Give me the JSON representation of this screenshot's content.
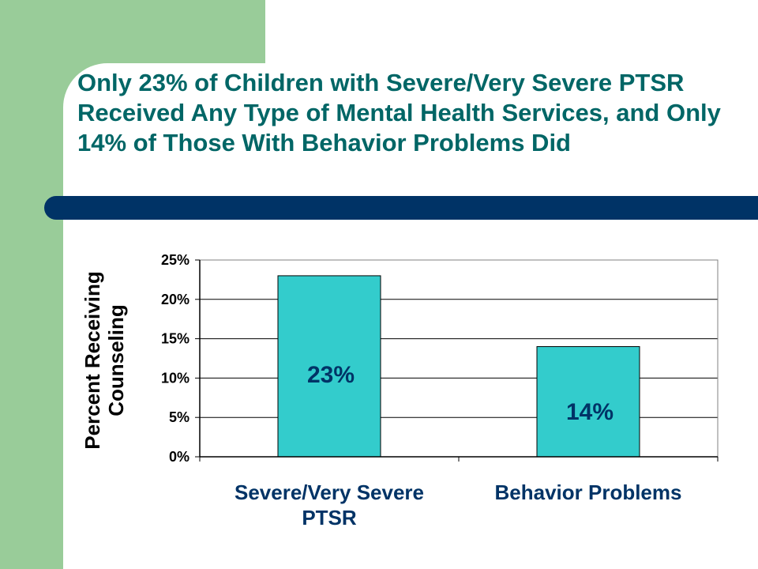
{
  "slide": {
    "title": "Only 23% of Children with Severe/Very Severe PTSR Received Any Type of Mental Health Services, and Only 14% of Those With Behavior Problems Did",
    "colors": {
      "title": "#006666",
      "accent_green": "#99cc99",
      "bar_navy": "#003366"
    }
  },
  "chart_data": {
    "type": "bar",
    "categories": [
      "Severe/Very Severe PTSR",
      "Behavior Problems"
    ],
    "category_lines": [
      [
        "Severe/Very Severe",
        "PTSR"
      ],
      [
        "Behavior Problems"
      ]
    ],
    "values": [
      23,
      14
    ],
    "data_labels": [
      "23%",
      "14%"
    ],
    "ylabel_lines": [
      "Percent Receiving",
      "Counseling"
    ],
    "ylim": [
      0,
      25
    ],
    "yticks": [
      0,
      5,
      10,
      15,
      20,
      25
    ],
    "ytick_labels": [
      "0%",
      "5%",
      "10%",
      "15%",
      "20%",
      "25%"
    ],
    "grid": true,
    "legend": "none",
    "bar_color": "#33cccc"
  }
}
